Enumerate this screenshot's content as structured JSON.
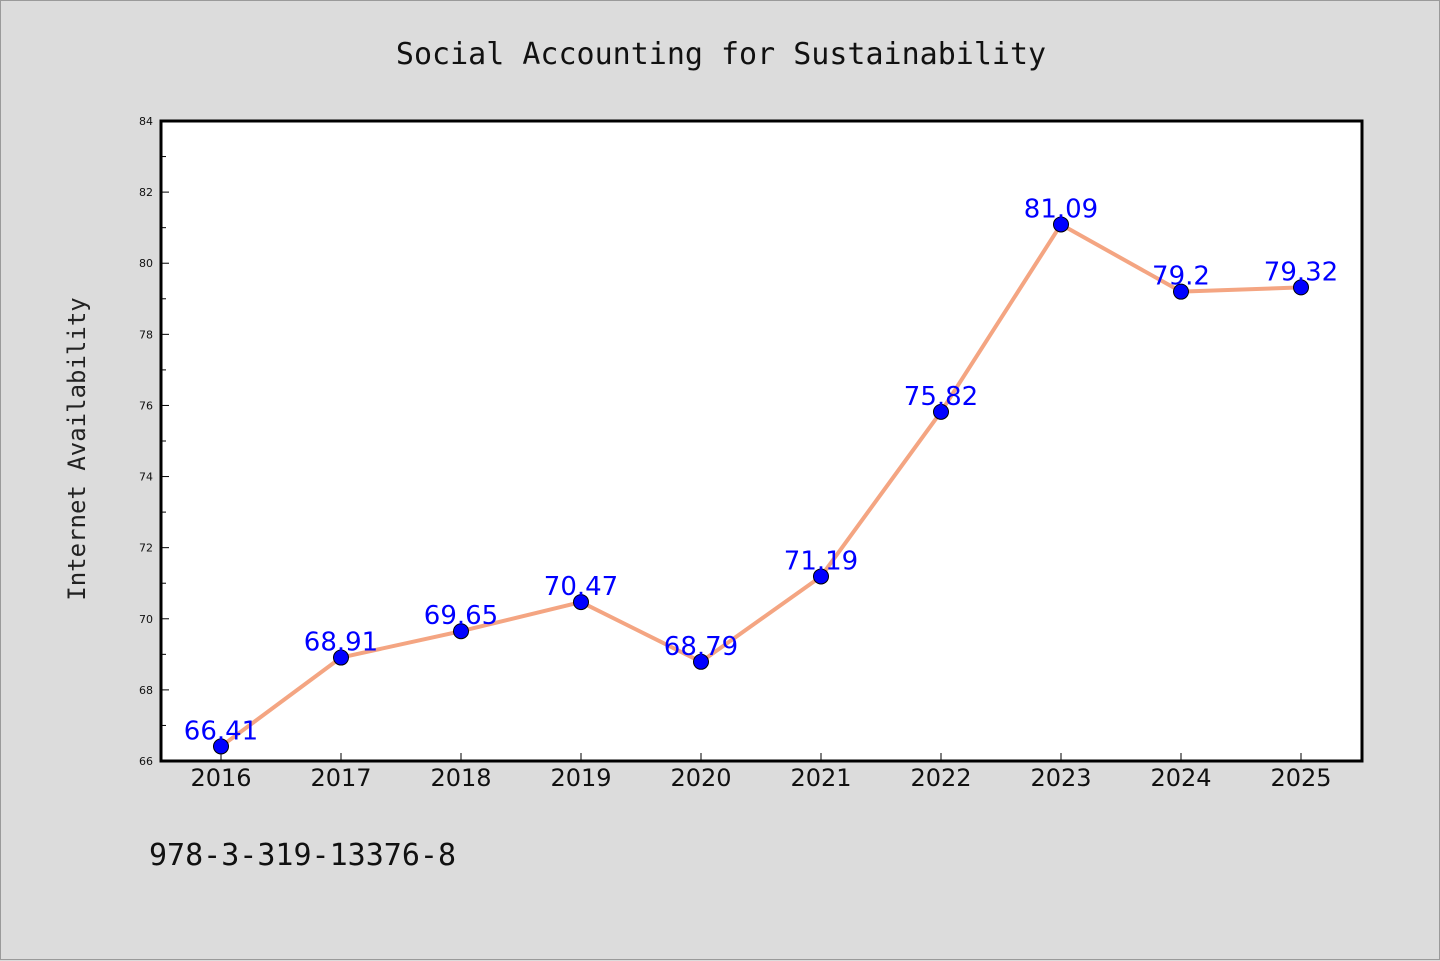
{
  "chart_data": {
    "type": "line",
    "title": "Social Accounting for Sustainability",
    "xlabel": "",
    "ylabel": "Internet Availability",
    "x": [
      "2016",
      "2017",
      "2018",
      "2019",
      "2020",
      "2021",
      "2022",
      "2023",
      "2024",
      "2025"
    ],
    "series": [
      {
        "values": [
          66.41,
          68.91,
          69.65,
          70.47,
          68.79,
          71.19,
          75.82,
          81.09,
          79.2,
          79.32
        ],
        "labels": [
          "66.41",
          "68.91",
          "69.65",
          "70.47",
          "68.79",
          "71.19",
          "75.82",
          "81.09",
          "79.2",
          "79.32"
        ],
        "line_color": "#f4a582",
        "marker_color": "#0000ff"
      }
    ],
    "ylim": [
      66,
      84
    ],
    "yticks": [
      "66",
      "68",
      "70",
      "72",
      "74",
      "76",
      "78",
      "80",
      "82",
      "84"
    ],
    "grid": false,
    "legend": "none",
    "footer": "978-3-319-13376-8"
  }
}
